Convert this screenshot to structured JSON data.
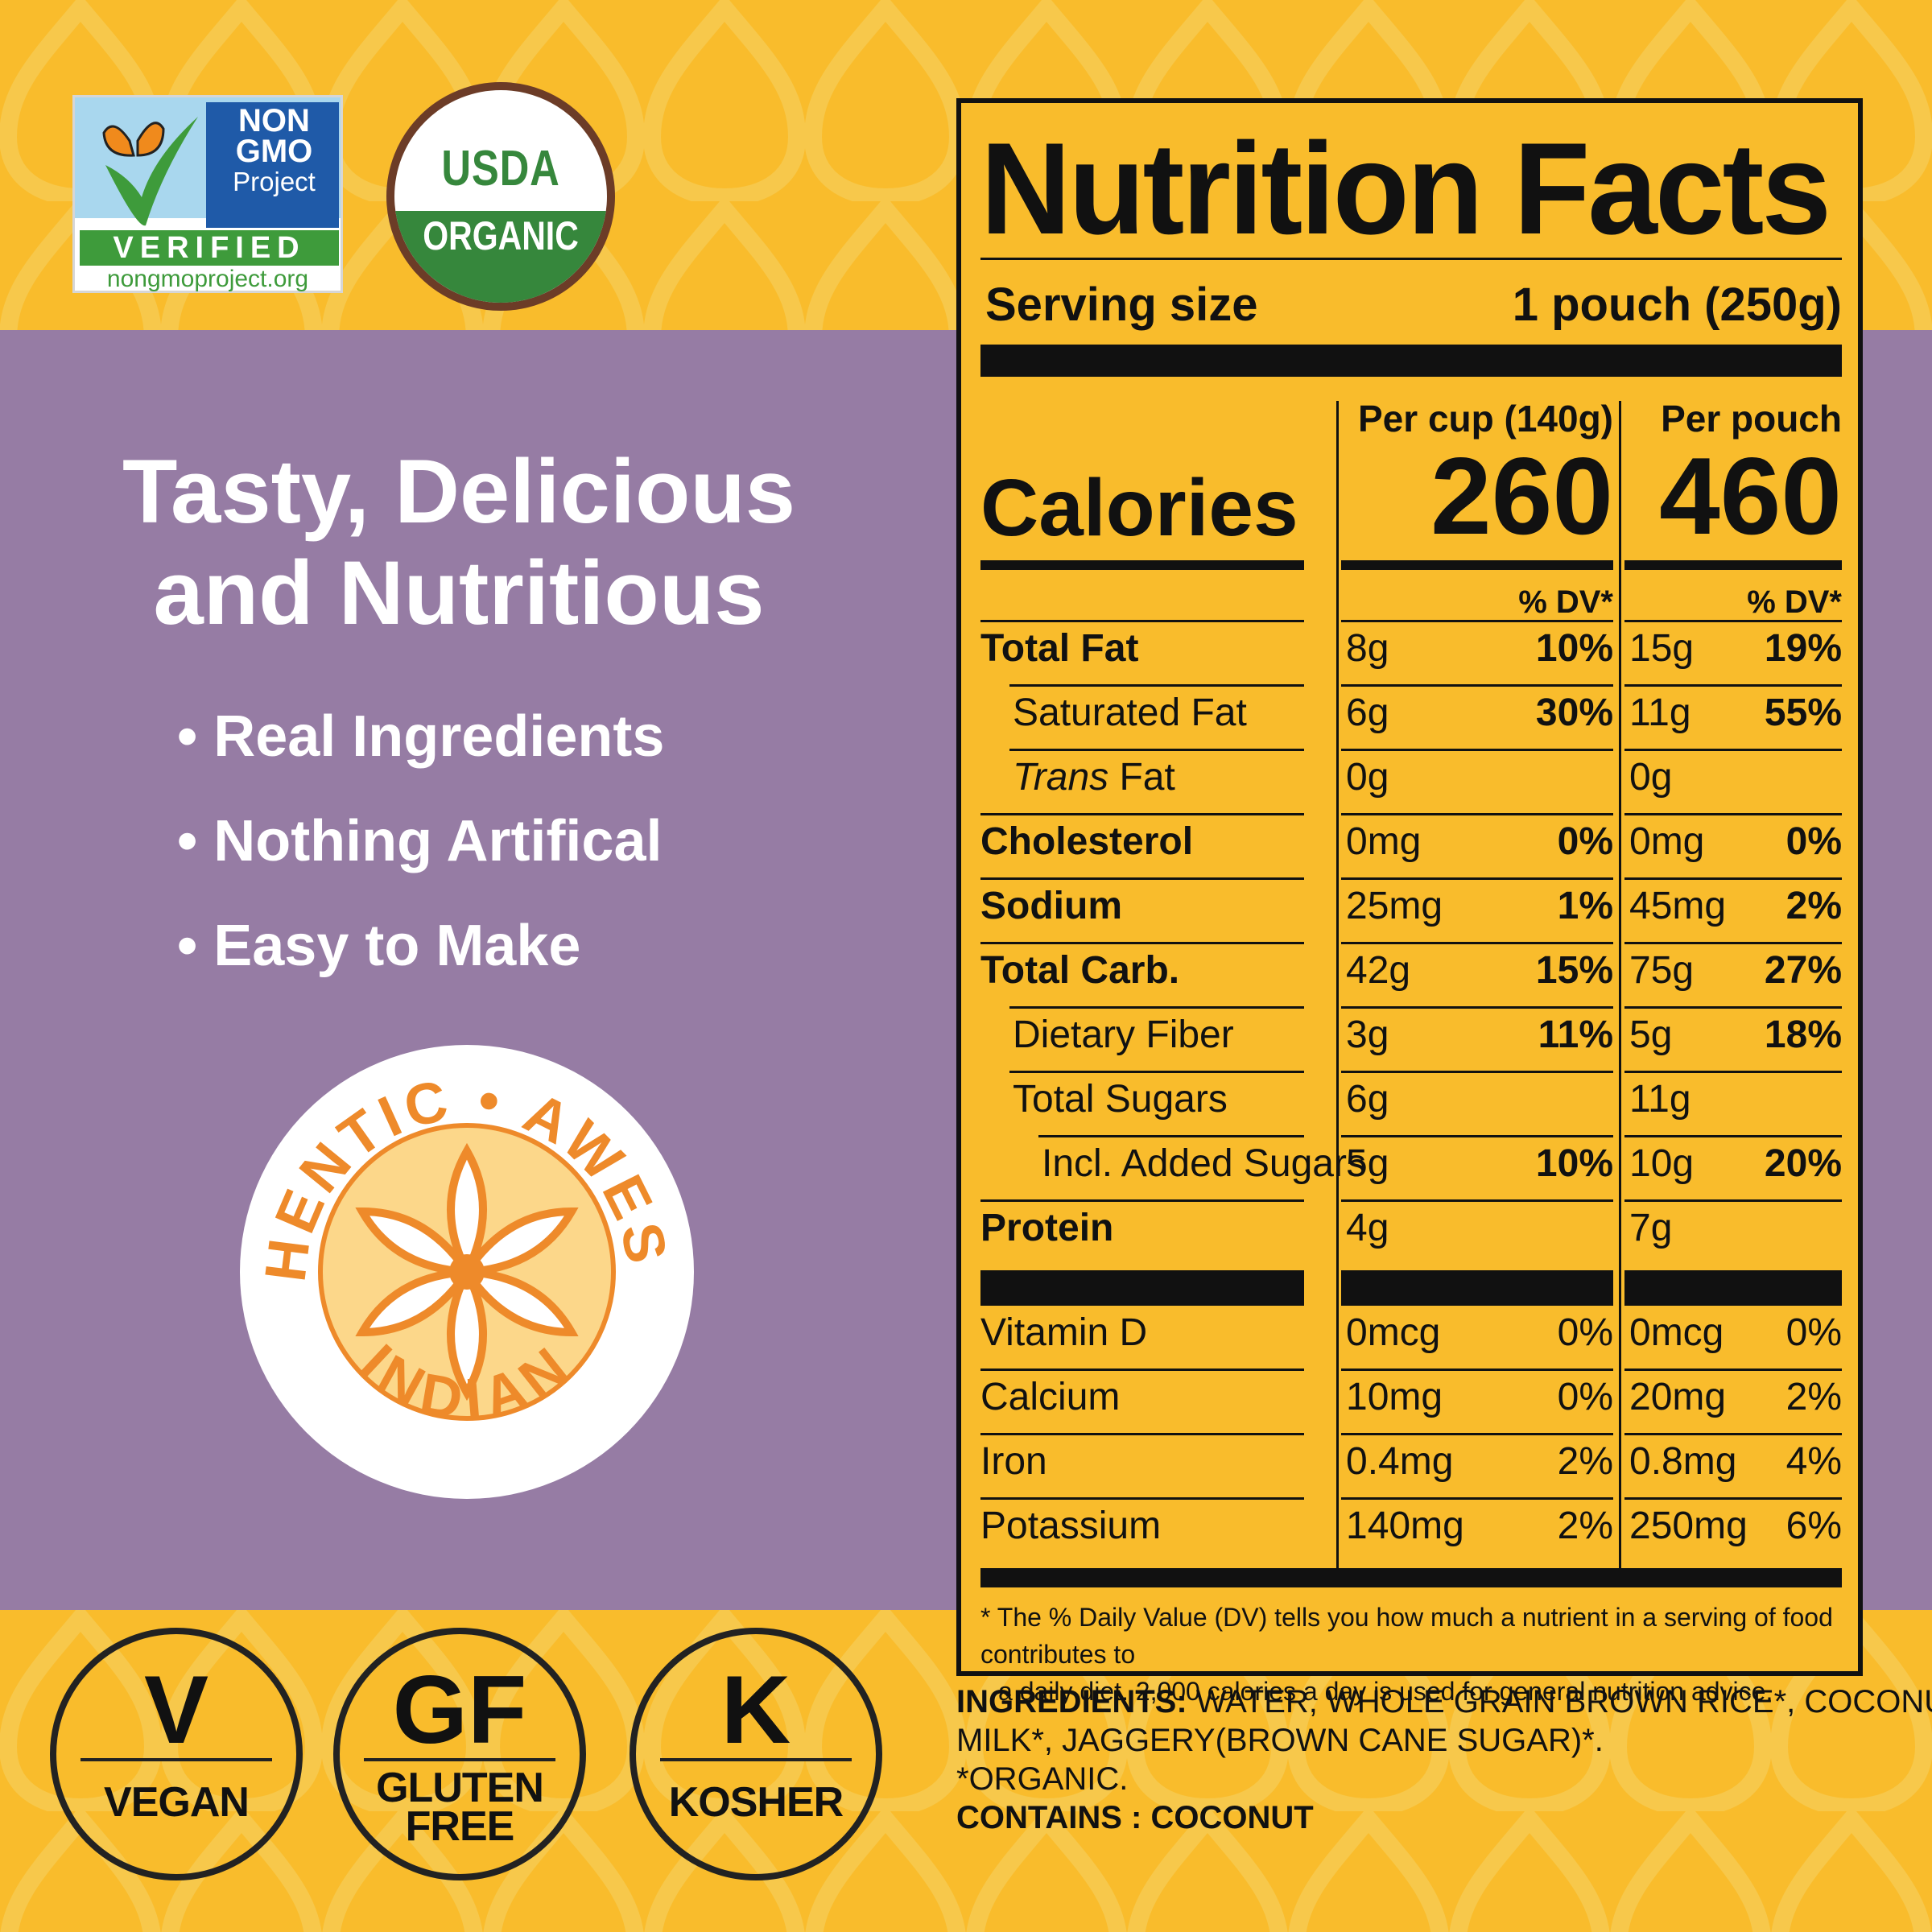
{
  "colors": {
    "background": "#F9BC2C",
    "purple": "#967CA4",
    "orange": "#EE8A2A",
    "black": "#111111"
  },
  "certifications": {
    "nongmo": {
      "line1": "NON",
      "line2": "GMO",
      "line3": "Project",
      "verified": "VERIFIED",
      "url": "nongmoproject.org"
    },
    "usda": {
      "top": "USDA",
      "bottom": "ORGANIC"
    }
  },
  "headline": {
    "line1": "Tasty, Delicious",
    "line2": "and Nutritious"
  },
  "benefits": [
    "• Real Ingredients",
    "• Nothing Artifical",
    "• Easy to Make"
  ],
  "badge": {
    "top": "AUTHENTIC • AWESOME",
    "bottom": "INDIAN"
  },
  "diet_badges": [
    {
      "symbol": "V",
      "label1": "VEGAN",
      "label2": ""
    },
    {
      "symbol": "GF",
      "label1": "GLUTEN",
      "label2": "FREE"
    },
    {
      "symbol": "K",
      "label1": "KOSHER",
      "label2": ""
    }
  ],
  "nutrition": {
    "title": "Nutrition Facts",
    "serving_label": "Serving size",
    "serving_value": "1 pouch (250g)",
    "col1_header": "Per cup (140g)",
    "col2_header": "Per pouch",
    "calories_label": "Calories",
    "calories_cup": "260",
    "calories_pouch": "460",
    "dv_header": "% DV*",
    "rows": [
      {
        "name": "Total Fat",
        "cup": "8g",
        "cup_dv": "10%",
        "pouch": "15g",
        "pouch_dv": "19%"
      },
      {
        "name": "Saturated Fat",
        "cup": "6g",
        "cup_dv": "30%",
        "pouch": "11g",
        "pouch_dv": "55%"
      },
      {
        "name": "Trans",
        "name_suffix": " Fat",
        "cup": "0g",
        "cup_dv": "",
        "pouch": "0g",
        "pouch_dv": ""
      },
      {
        "name": "Cholesterol",
        "cup": "0mg",
        "cup_dv": "0%",
        "pouch": "0mg",
        "pouch_dv": "0%"
      },
      {
        "name": "Sodium",
        "cup": "25mg",
        "cup_dv": "1%",
        "pouch": "45mg",
        "pouch_dv": "2%"
      },
      {
        "name": "Total Carb.",
        "cup": "42g",
        "cup_dv": "15%",
        "pouch": "75g",
        "pouch_dv": "27%"
      },
      {
        "name": "Dietary Fiber",
        "cup": "3g",
        "cup_dv": "11%",
        "pouch": "5g",
        "pouch_dv": "18%"
      },
      {
        "name": "Total Sugars",
        "cup": "6g",
        "cup_dv": "",
        "pouch": "11g",
        "pouch_dv": ""
      },
      {
        "name": "Incl. Added Sugars",
        "cup": "5g",
        "cup_dv": "10%",
        "pouch": "10g",
        "pouch_dv": "20%"
      },
      {
        "name": "Protein",
        "cup": "4g",
        "cup_dv": "",
        "pouch": "7g",
        "pouch_dv": ""
      }
    ],
    "vitamins": [
      {
        "name": "Vitamin D",
        "cup": "0mcg",
        "cup_dv": "0%",
        "pouch": "0mcg",
        "pouch_dv": "0%"
      },
      {
        "name": "Calcium",
        "cup": "10mg",
        "cup_dv": "0%",
        "pouch": "20mg",
        "pouch_dv": "2%"
      },
      {
        "name": "Iron",
        "cup": "0.4mg",
        "cup_dv": "2%",
        "pouch": "0.8mg",
        "pouch_dv": "4%"
      },
      {
        "name": "Potassium",
        "cup": "140mg",
        "cup_dv": "2%",
        "pouch": "250mg",
        "pouch_dv": "6%"
      }
    ],
    "footnote_line1": "* The % Daily Value (DV) tells you how much a nutrient in a serving of food contributes to",
    "footnote_line2": "a daily diet. 2,000 calories a day is used for general nutrition advice."
  },
  "ingredients": {
    "label": "INGREDIENTS:",
    "line1": " WATER, WHOLE GRAIN BROWN RICE*, COCONUT",
    "line2": "MILK*, JAGGERY(BROWN CANE SUGAR)*.",
    "line3": "*ORGANIC.",
    "contains_label": "CONTAINS :",
    "contains_value": " COCONUT"
  }
}
